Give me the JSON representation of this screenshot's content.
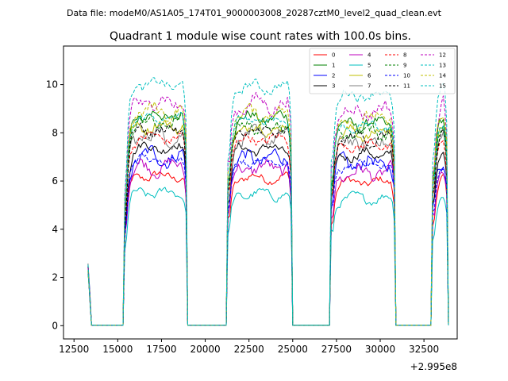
{
  "figure": {
    "suptitle": "Data file: modeM0/AS1A05_174T01_9000003008_20287cztM0_level2_quad_clean.evt"
  },
  "chart_data": {
    "type": "line",
    "title": "Quadrant 1 module wise count rates with 100.0s bins.",
    "xlabel": "",
    "ylabel": "",
    "x_offset_label": "+2.995e8",
    "xlim": [
      11900,
      34400
    ],
    "ylim": [
      -0.55,
      11.6
    ],
    "x_ticks": [
      12500,
      15000,
      17500,
      20000,
      22500,
      25000,
      27500,
      30000,
      32500
    ],
    "x_tick_labels": [
      "12500",
      "15000",
      "17500",
      "20000",
      "22500",
      "25000",
      "27500",
      "30000",
      "32500"
    ],
    "y_ticks": [
      0,
      2,
      4,
      6,
      8,
      10
    ],
    "y_tick_labels": [
      "0",
      "2",
      "4",
      "6",
      "8",
      "10"
    ],
    "legend_position": "top-right",
    "observation_segments": [
      [
        15400,
        18900
      ],
      [
        21300,
        24900
      ],
      [
        27200,
        30800
      ],
      [
        33000,
        33800
      ]
    ],
    "series": [
      {
        "name": "0",
        "color": "#ff0000",
        "dash": "solid",
        "level": 6.2
      },
      {
        "name": "1",
        "color": "#008000",
        "dash": "solid",
        "level": 8.7
      },
      {
        "name": "2",
        "color": "#0000ff",
        "dash": "solid",
        "level": 7.0
      },
      {
        "name": "3",
        "color": "#000000",
        "dash": "solid",
        "level": 7.4
      },
      {
        "name": "4",
        "color": "#bf00bf",
        "dash": "solid",
        "level": 6.6
      },
      {
        "name": "5",
        "color": "#00bfbf",
        "dash": "solid",
        "level": 5.5
      },
      {
        "name": "6",
        "color": "#bfbf00",
        "dash": "solid",
        "level": 8.3
      },
      {
        "name": "7",
        "color": "#808080",
        "dash": "solid",
        "level": 7.9
      },
      {
        "name": "8",
        "color": "#ff0000",
        "dash": "dashed",
        "level": 7.8
      },
      {
        "name": "9",
        "color": "#008000",
        "dash": "dashed",
        "level": 8.4
      },
      {
        "name": "10",
        "color": "#0000ff",
        "dash": "dashed",
        "level": 6.9
      },
      {
        "name": "11",
        "color": "#000000",
        "dash": "dashed",
        "level": 8.1
      },
      {
        "name": "12",
        "color": "#bf00bf",
        "dash": "dashed",
        "level": 9.3
      },
      {
        "name": "13",
        "color": "#00bfbf",
        "dash": "dashed",
        "level": 10.0
      },
      {
        "name": "14",
        "color": "#bfbf00",
        "dash": "dashed",
        "level": 8.9
      },
      {
        "name": "15",
        "color": "#00bfbf",
        "dash": "dashed",
        "level": 8.6
      }
    ]
  }
}
